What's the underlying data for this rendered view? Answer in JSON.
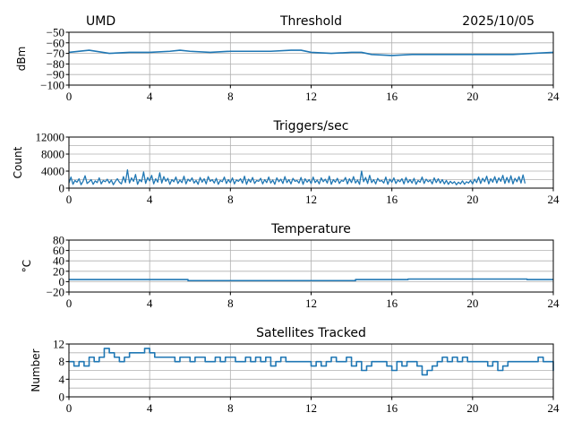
{
  "header": {
    "site": "UMD",
    "date": "2025/10/05"
  },
  "colors": {
    "line": "#1f77b4",
    "grid": "#b0b0b0",
    "axis": "#000000"
  },
  "chart_data": [
    {
      "type": "line",
      "title": "Threshold",
      "ylabel": "dBm",
      "xlim": [
        0,
        24
      ],
      "ylim": [
        -100,
        -50
      ],
      "xticks": [
        0,
        4,
        8,
        12,
        16,
        20,
        24
      ],
      "yticks": [
        -100,
        -90,
        -80,
        -70,
        -60,
        -50
      ],
      "ytick_labels": [
        "−100",
        "−90",
        "−80",
        "−70",
        "−60",
        "−50"
      ],
      "grid_y": [
        -90,
        -80,
        -70,
        -60
      ],
      "grid": true,
      "x": [
        0,
        1,
        2,
        3,
        4,
        5,
        5.5,
        6,
        7,
        8,
        9,
        10,
        11,
        11.5,
        12,
        13,
        14,
        14.5,
        15,
        16,
        17,
        18,
        19,
        20,
        21,
        22,
        23,
        24
      ],
      "y": [
        -69,
        -67,
        -70,
        -69,
        -69,
        -68,
        -67,
        -68,
        -69,
        -68,
        -68,
        -68,
        -67,
        -67,
        -69,
        -70,
        -69,
        -69,
        -71,
        -72,
        -71,
        -71,
        -71,
        -71,
        -71,
        -71,
        -70,
        -69
      ]
    },
    {
      "type": "line",
      "title": "Triggers/sec",
      "ylabel": "Count",
      "xlim": [
        0,
        24
      ],
      "ylim": [
        0,
        12000
      ],
      "xticks": [
        0,
        4,
        8,
        12,
        16,
        20,
        24
      ],
      "yticks": [
        0,
        4000,
        8000,
        12000
      ],
      "ytick_labels": [
        "0",
        "4000",
        "8000",
        "12000"
      ],
      "grid_y": [
        2000,
        4000,
        6000,
        8000,
        10000,
        12000
      ],
      "grid": true,
      "x_step": 0.1,
      "y": [
        1200,
        2600,
        900,
        1800,
        1400,
        2200,
        800,
        1600,
        2900,
        1100,
        1500,
        2000,
        900,
        1700,
        1300,
        2400,
        1000,
        1800,
        1500,
        2100,
        1200,
        1900,
        800,
        1600,
        2200,
        1400,
        1000,
        2700,
        1300,
        4300,
        1200,
        2400,
        1600,
        3200,
        900,
        2000,
        1500,
        3800,
        1100,
        2500,
        1700,
        3000,
        1000,
        2200,
        1400,
        3600,
        1200,
        2700,
        1600,
        2300,
        900,
        2000,
        1500,
        2600,
        1100,
        1900,
        1300,
        2800,
        1000,
        2100,
        1600,
        2400,
        1200,
        1800,
        900,
        2500,
        1400,
        2200,
        1000,
        2700,
        1600,
        2000,
        1200,
        2300,
        900,
        1800,
        1500,
        2600,
        1100,
        2000,
        1300,
        2400,
        1000,
        1900,
        1600,
        2200,
        1200,
        2800,
        900,
        2100,
        1400,
        2500,
        1100,
        1800,
        1600,
        2300,
        1000,
        2000,
        1300,
        2600,
        1200,
        1900,
        900,
        2400,
        1500,
        2100,
        1100,
        2700,
        1300,
        2000,
        1000,
        2300,
        1600,
        1800,
        1200,
        2500,
        900,
        2200,
        1400,
        2000,
        1100,
        2600,
        1300,
        1900,
        1000,
        2400,
        1500,
        2100,
        1200,
        2800,
        900,
        2000,
        1400,
        2300,
        1100,
        1800,
        1600,
        2500,
        1000,
        2200,
        1300,
        2700,
        1200,
        1900,
        900,
        4000,
        1500,
        2500,
        1100,
        3000,
        1300,
        2000,
        1000,
        2300,
        1600,
        1800,
        1200,
        2600,
        900,
        2100,
        1400,
        2400,
        1100,
        1900,
        1500,
        2200,
        1000,
        2500,
        1300,
        2000,
        1200,
        2300,
        900,
        1800,
        1400,
        2600,
        1100,
        2100,
        1500,
        1900,
        1000,
        2400,
        1300,
        2200,
        1200,
        2000,
        1000,
        1800,
        900,
        1600,
        1100,
        1500,
        800,
        1400,
        1000,
        1700,
        900,
        1500,
        1200,
        1800,
        1000,
        2100,
        1300,
        2600,
        1100,
        2300,
        1500,
        2800,
        1000,
        2200,
        1400,
        2700,
        1200,
        2400,
        1600,
        3000,
        1100,
        2500,
        1300,
        2900,
        1000,
        2300,
        1500,
        2700,
        1200,
        3100,
        1100
      ]
    },
    {
      "type": "line",
      "title": "Temperature",
      "ylabel": "°C",
      "xlim": [
        0,
        24
      ],
      "ylim": [
        -20,
        80
      ],
      "xticks": [
        0,
        4,
        8,
        12,
        16,
        20,
        24
      ],
      "yticks": [
        -20,
        0,
        20,
        40,
        60,
        80
      ],
      "ytick_labels": [
        "−20",
        "0",
        "20",
        "40",
        "60",
        "80"
      ],
      "grid_y": [
        0,
        20,
        40,
        60
      ],
      "grid": true,
      "x": [
        0,
        5.9,
        5.9,
        14.2,
        14.2,
        16.8,
        16.8,
        22.7,
        22.7,
        24
      ],
      "y": [
        4,
        4,
        2,
        2,
        4,
        4,
        5,
        5,
        4,
        4
      ]
    },
    {
      "type": "line",
      "title": "Satellites Tracked",
      "ylabel": "Number",
      "xlim": [
        0,
        24
      ],
      "ylim": [
        0,
        12
      ],
      "xticks": [
        0,
        4,
        8,
        12,
        16,
        20,
        24
      ],
      "yticks": [
        0,
        4,
        8,
        12
      ],
      "ytick_labels": [
        "0",
        "4",
        "8",
        "12"
      ],
      "grid_y": [
        2,
        4,
        6,
        8,
        10,
        12
      ],
      "grid": true,
      "x_step": 0.25,
      "y": [
        8,
        7,
        8,
        7,
        9,
        8,
        9,
        11,
        10,
        9,
        8,
        9,
        10,
        10,
        10,
        11,
        10,
        9,
        9,
        9,
        9,
        8,
        9,
        9,
        8,
        9,
        9,
        8,
        8,
        9,
        8,
        9,
        9,
        8,
        8,
        9,
        8,
        9,
        8,
        9,
        7,
        8,
        9,
        8,
        8,
        8,
        8,
        8,
        7,
        8,
        7,
        8,
        9,
        8,
        8,
        9,
        7,
        8,
        6,
        7,
        8,
        8,
        8,
        7,
        6,
        8,
        7,
        8,
        8,
        7,
        5,
        6,
        7,
        8,
        9,
        8,
        9,
        8,
        9,
        8,
        8,
        8,
        8,
        7,
        8,
        6,
        7,
        8,
        8,
        8,
        8,
        8,
        8,
        9,
        8,
        8,
        7,
        6,
        7
      ]
    }
  ]
}
